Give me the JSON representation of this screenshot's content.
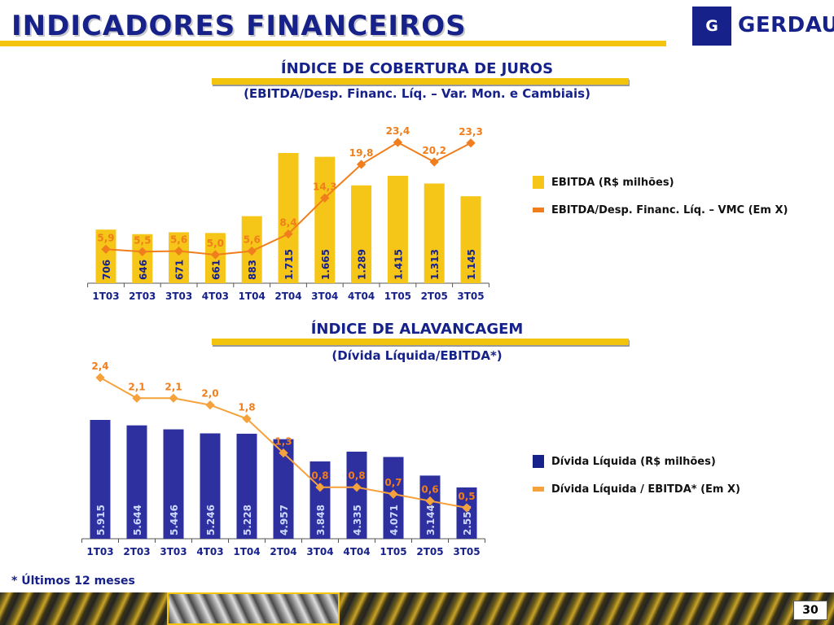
{
  "header": {
    "title": "INDICADORES FINANCEIROS",
    "logo_text": "GERDAU",
    "logo_mark": "G"
  },
  "colors": {
    "navy": "#16218a",
    "yellow": "#f2c40c",
    "bar_yellow": "#f5c518",
    "line_orange": "#f07e1c",
    "bar_blue": "#2e30a0",
    "label_orange": "#f07e1c",
    "value_navy": "#16218a",
    "value_light": "#cfd8ff"
  },
  "chart_data": [
    {
      "type": "bar",
      "title": "ÍNDICE DE COBERTURA DE JUROS",
      "subtitle": "(EBITDA/Desp. Financ. Líq. – Var. Mon. e Cambiais)",
      "categories": [
        "1T03",
        "2T03",
        "3T03",
        "4T03",
        "1T04",
        "2T04",
        "3T04",
        "4T04",
        "1T05",
        "2T05",
        "3T05"
      ],
      "series": [
        {
          "name": "EBITDA (R$ milhões)",
          "kind": "bar",
          "values": [
            706,
            646,
            671,
            661,
            883,
            1715,
            1665,
            1289,
            1415,
            1313,
            1145
          ],
          "labels": [
            "706",
            "646",
            "671",
            "661",
            "883",
            "1.715",
            "1.665",
            "1.289",
            "1.415",
            "1.313",
            "1.145"
          ]
        },
        {
          "name": "EBITDA/Desp. Financ. Líq. – VMC (Em X)",
          "kind": "line",
          "values": [
            5.9,
            5.5,
            5.6,
            5.0,
            5.6,
            8.4,
            14.3,
            19.8,
            23.4,
            20.2,
            23.3
          ],
          "labels": [
            "5,9",
            "5,5",
            "5,6",
            "5,0",
            "5,6",
            "8,4",
            "14,3",
            "19,8",
            "23,4",
            "20,2",
            "23,3"
          ]
        }
      ],
      "legend_position": "right"
    },
    {
      "type": "bar",
      "title": "ÍNDICE DE ALAVANCAGEM",
      "subtitle": "(Dívida Líquida/EBITDA*)",
      "categories": [
        "1T03",
        "2T03",
        "3T03",
        "4T03",
        "1T04",
        "2T04",
        "3T04",
        "4T04",
        "1T05",
        "2T05",
        "3T05"
      ],
      "series": [
        {
          "name": "Dívida Líquida (R$ milhões)",
          "kind": "bar",
          "values": [
            5915,
            5644,
            5446,
            5246,
            5228,
            4957,
            3848,
            4335,
            4071,
            3144,
            2554
          ],
          "labels": [
            "5.915",
            "5.644",
            "5.446",
            "5.246",
            "5.228",
            "4.957",
            "3.848",
            "4.335",
            "4.071",
            "3.144",
            "2.554"
          ]
        },
        {
          "name": "Dívida Líquida / EBITDA* (Em X)",
          "kind": "line",
          "values": [
            2.4,
            2.1,
            2.1,
            2.0,
            1.8,
            1.3,
            0.8,
            0.8,
            0.7,
            0.6,
            0.5
          ],
          "labels": [
            "2,4",
            "2,1",
            "2,1",
            "2,0",
            "1,8",
            "1,3",
            "0,8",
            "0,8",
            "0,7",
            "0,6",
            "0,5"
          ]
        }
      ],
      "legend_position": "right"
    }
  ],
  "footnote": "* Últimos 12 meses",
  "page_number": "30"
}
